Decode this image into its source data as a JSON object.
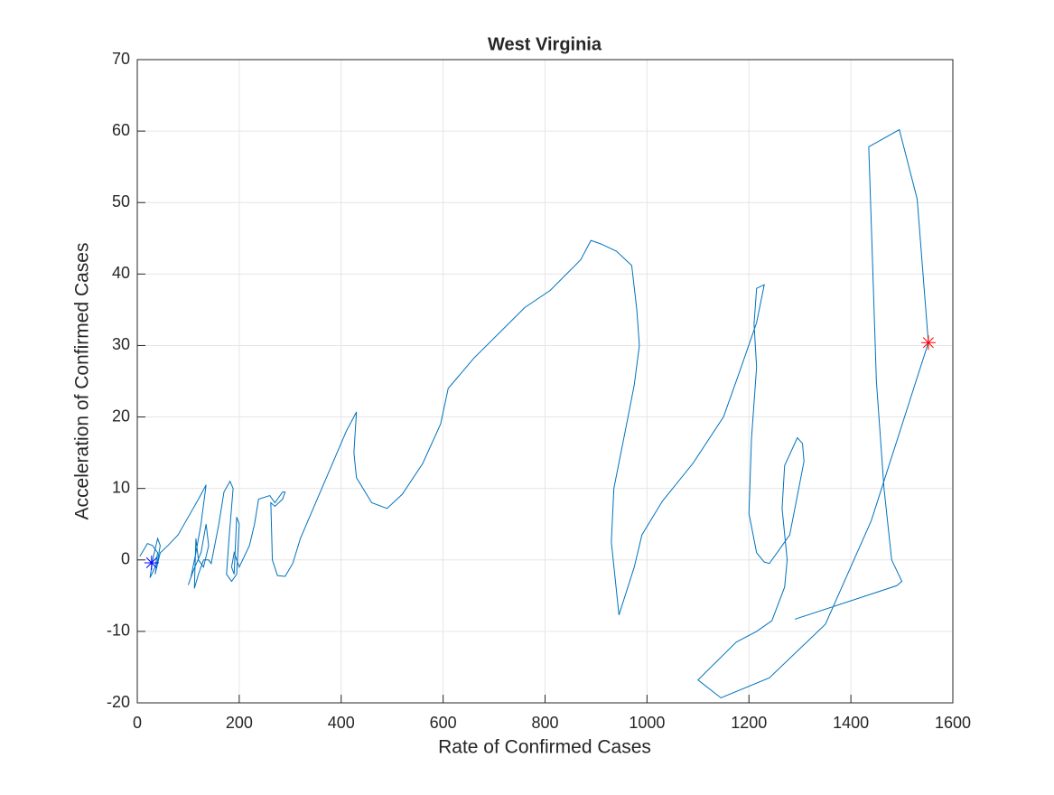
{
  "chart_data": {
    "type": "line",
    "title": "West Virginia",
    "xlabel": "Rate of Confirmed Cases",
    "ylabel": "Acceleration of Confirmed Cases",
    "xlim": [
      0,
      1600
    ],
    "xticks": [
      0,
      200,
      400,
      600,
      800,
      1000,
      1200,
      1400,
      1600
    ],
    "ylim": [
      -20,
      70
    ],
    "yticks": [
      -20,
      -10,
      0,
      10,
      20,
      30,
      40,
      50,
      60,
      70
    ],
    "grid": true,
    "series": [
      {
        "color": "#0072bd",
        "x": [
          5,
          20,
          30,
          40,
          35,
          25,
          30,
          40,
          45,
          35,
          45,
          60,
          80,
          100,
          120,
          135,
          125,
          115,
          105,
          100,
          110,
          125,
          135,
          140,
          130,
          120,
          115,
          112,
          120,
          130,
          140,
          145,
          160,
          170,
          182,
          188,
          180,
          175,
          185,
          195,
          200,
          195,
          190,
          185,
          190,
          200,
          220,
          230,
          238,
          260,
          270,
          285,
          290,
          285,
          270,
          262,
          265,
          275,
          290,
          305,
          320,
          350,
          380,
          410,
          430,
          425,
          430,
          460,
          490,
          520,
          560,
          595,
          610,
          660,
          760,
          810,
          870,
          890,
          910,
          940,
          970,
          980,
          985,
          975,
          960,
          935,
          930,
          945,
          975,
          990,
          1030,
          1090,
          1150,
          1180,
          1215,
          1230,
          1215,
          1210,
          1215,
          1205,
          1200,
          1215,
          1230,
          1240,
          1260,
          1280,
          1295,
          1308,
          1305,
          1295,
          1270,
          1265,
          1275,
          1270,
          1245,
          1215,
          1175,
          1100,
          1145,
          1240,
          1350,
          1440,
          1552,
          1530,
          1495,
          1435,
          1440,
          1450,
          1465,
          1480,
          1500,
          1490,
          1290
        ],
        "values": [
          0.5,
          2.3,
          2,
          1,
          -1,
          -2.5,
          0,
          3,
          2,
          -2,
          1,
          2,
          3.5,
          6,
          8.5,
          10.5,
          5,
          1,
          -2.5,
          -3.5,
          -1.5,
          1,
          5,
          2,
          -1,
          0,
          3,
          -4,
          -2,
          0,
          0,
          -0.5,
          5,
          9.5,
          11,
          10,
          3,
          -2,
          -3,
          -2,
          5,
          6,
          -2,
          -1,
          1,
          -1,
          2,
          5,
          8.5,
          9,
          8,
          9.5,
          9.5,
          8.5,
          7.5,
          8,
          0,
          -2.2,
          -2.3,
          -0.5,
          3,
          8,
          13,
          18,
          20.7,
          15,
          11.5,
          8,
          7.2,
          9.2,
          13.5,
          19,
          24,
          28.2,
          35.3,
          37.7,
          42,
          44.7,
          44.2,
          43.2,
          41.2,
          35,
          30,
          24.5,
          19,
          10,
          2.5,
          -7.7,
          -1,
          3.5,
          8.2,
          13.5,
          20,
          26,
          33.2,
          38.5,
          38,
          33,
          27,
          17,
          6.5,
          1,
          -0.3,
          -0.5,
          1.5,
          3.5,
          9,
          13.8,
          16.3,
          17.1,
          13.2,
          7.2,
          0,
          -3.8,
          -8.5,
          -10,
          -11.5,
          -16.8,
          -19.3,
          -16.5,
          -9,
          5.5,
          30.4,
          50.5,
          60.2,
          57.8,
          47,
          25,
          10,
          0,
          -3,
          -3.6,
          -8.3
        ]
      }
    ],
    "markers": [
      {
        "x": 28,
        "y": -0.4,
        "color": "#0000ff"
      },
      {
        "x": 1552,
        "y": 30.4,
        "color": "#ff0000"
      }
    ]
  }
}
